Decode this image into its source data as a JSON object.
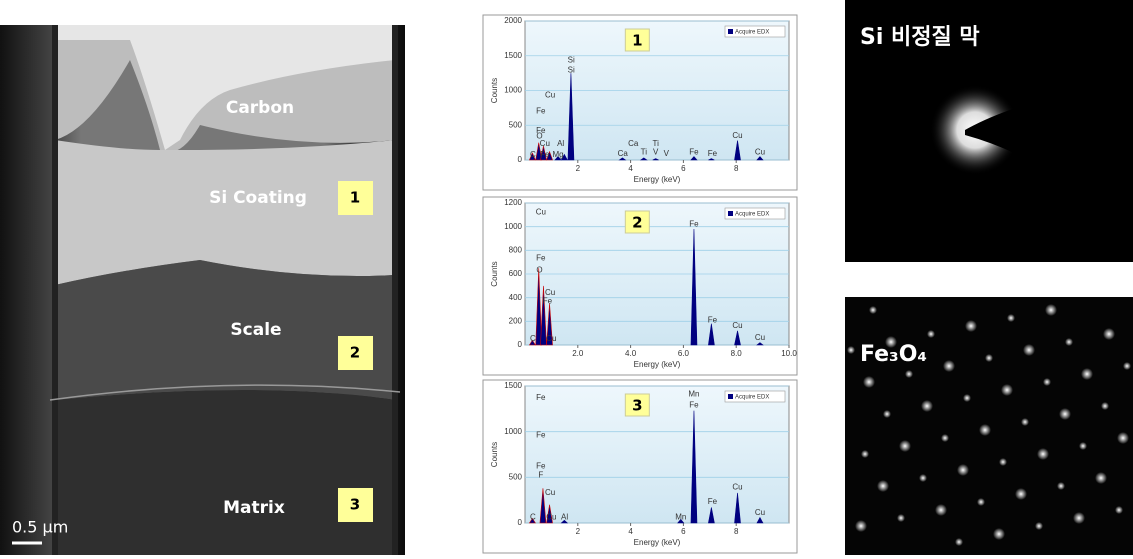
{
  "chart_data": [
    {
      "type": "spectrum",
      "label": "1",
      "xlabel": "Energy (keV)",
      "ylabel": "Counts",
      "xlim": [
        0,
        10
      ],
      "ylim": [
        0,
        2000
      ],
      "xticks": [
        2,
        4,
        6,
        8
      ],
      "yticks": [
        0,
        500,
        1000,
        1500,
        2000
      ],
      "grid": true,
      "series": [
        {
          "name": "Acquire EDX",
          "color": "#000080",
          "x": [
            0.28,
            0.52,
            0.7,
            0.93,
            1.25,
            1.49,
            1.74,
            3.69,
            4.5,
            4.95,
            6.4,
            7.06,
            8.05,
            8.9
          ],
          "values": [
            100,
            250,
            200,
            120,
            50,
            80,
            1250,
            30,
            30,
            20,
            50,
            20,
            280,
            50
          ]
        }
      ],
      "annotations": [
        {
          "text": "C",
          "x": 0.3,
          "y": 70
        },
        {
          "text": "Fe",
          "x": 0.75,
          "y": 70
        },
        {
          "text": "Mg",
          "x": 1.25,
          "y": 70
        },
        {
          "text": "Cu",
          "x": 0.75,
          "y": 230
        },
        {
          "text": "Al",
          "x": 1.35,
          "y": 230
        },
        {
          "text": "O",
          "x": 0.55,
          "y": 340
        },
        {
          "text": "Fe",
          "x": 0.6,
          "y": 420
        },
        {
          "text": "Fe",
          "x": 0.6,
          "y": 700
        },
        {
          "text": "Cu",
          "x": 0.95,
          "y": 930
        },
        {
          "text": "Si",
          "x": 1.75,
          "y": 1290
        },
        {
          "text": "Si",
          "x": 1.75,
          "y": 1430
        },
        {
          "text": "Ca",
          "x": 3.7,
          "y": 90
        },
        {
          "text": "Ca",
          "x": 4.1,
          "y": 230
        },
        {
          "text": "Ti",
          "x": 4.5,
          "y": 110
        },
        {
          "text": "Ti",
          "x": 4.95,
          "y": 230
        },
        {
          "text": "V",
          "x": 4.95,
          "y": 110
        },
        {
          "text": "V",
          "x": 5.35,
          "y": 90
        },
        {
          "text": "Fe",
          "x": 6.4,
          "y": 110
        },
        {
          "text": "Fe",
          "x": 7.1,
          "y": 90
        },
        {
          "text": "Cu",
          "x": 8.05,
          "y": 350
        },
        {
          "text": "Cu",
          "x": 8.9,
          "y": 110
        }
      ]
    },
    {
      "type": "spectrum",
      "label": "2",
      "xlabel": "Energy (keV)",
      "ylabel": "Counts",
      "xlim": [
        0,
        10
      ],
      "ylim": [
        0,
        1200
      ],
      "xticks": [
        {
          "value": 2,
          "label": "2.0"
        },
        {
          "value": 4,
          "label": "4.0"
        },
        {
          "value": 6,
          "label": "6.0"
        },
        {
          "value": 8,
          "label": "8.0"
        },
        {
          "value": 10,
          "label": "10.0"
        }
      ],
      "yticks": [
        0,
        200,
        400,
        600,
        800,
        1000,
        1200
      ],
      "grid": true,
      "series": [
        {
          "name": "Acquire EDX",
          "color": "#000080",
          "x": [
            0.28,
            0.52,
            0.7,
            0.93,
            6.4,
            7.06,
            8.05,
            8.9
          ],
          "values": [
            40,
            650,
            500,
            350,
            980,
            180,
            120,
            20
          ]
        }
      ],
      "annotations": [
        {
          "text": "Cu",
          "x": 0.6,
          "y": 1120
        },
        {
          "text": "Fe",
          "x": 0.6,
          "y": 730
        },
        {
          "text": "O",
          "x": 0.55,
          "y": 630
        },
        {
          "text": "Cu",
          "x": 0.95,
          "y": 440
        },
        {
          "text": "Fe",
          "x": 0.85,
          "y": 370
        },
        {
          "text": "C",
          "x": 0.3,
          "y": 50
        },
        {
          "text": "Cu",
          "x": 1.0,
          "y": 50
        },
        {
          "text": "Fe",
          "x": 6.4,
          "y": 1020
        },
        {
          "text": "Fe",
          "x": 7.1,
          "y": 210
        },
        {
          "text": "Cu",
          "x": 8.05,
          "y": 160
        },
        {
          "text": "Cu",
          "x": 8.9,
          "y": 60
        }
      ]
    },
    {
      "type": "spectrum",
      "label": "3",
      "xlabel": "Energy (keV)",
      "ylabel": "Counts",
      "xlim": [
        0,
        10
      ],
      "ylim": [
        0,
        1500
      ],
      "xticks": [
        2,
        4,
        6,
        8
      ],
      "yticks": [
        0,
        500,
        1000,
        1500
      ],
      "grid": true,
      "series": [
        {
          "name": "Acquire EDX",
          "color": "#000080",
          "x": [
            0.28,
            0.68,
            0.93,
            1.49,
            5.9,
            6.4,
            7.06,
            8.05,
            8.9
          ],
          "values": [
            50,
            380,
            200,
            30,
            40,
            1230,
            170,
            330,
            60
          ]
        }
      ],
      "annotations": [
        {
          "text": "Fe",
          "x": 0.6,
          "y": 1370
        },
        {
          "text": "Fe",
          "x": 0.6,
          "y": 960
        },
        {
          "text": "Fe",
          "x": 0.6,
          "y": 620
        },
        {
          "text": "F",
          "x": 0.6,
          "y": 520
        },
        {
          "text": "Cu",
          "x": 0.95,
          "y": 330
        },
        {
          "text": "C",
          "x": 0.3,
          "y": 60
        },
        {
          "text": "Cu",
          "x": 1.0,
          "y": 60
        },
        {
          "text": "Al",
          "x": 1.5,
          "y": 60
        },
        {
          "text": "Mn",
          "x": 5.9,
          "y": 60
        },
        {
          "text": "Fe",
          "x": 6.4,
          "y": 1290
        },
        {
          "text": "Mn",
          "x": 6.4,
          "y": 1410
        },
        {
          "text": "Fe",
          "x": 7.1,
          "y": 230
        },
        {
          "text": "Cu",
          "x": 8.05,
          "y": 390
        },
        {
          "text": "Cu",
          "x": 8.9,
          "y": 110
        }
      ]
    }
  ],
  "tem": {
    "layers": [
      "Carbon",
      "Si Coating",
      "Scale",
      "Matrix"
    ],
    "numbers": [
      "1",
      "2",
      "3"
    ],
    "scale": "0.5 μm"
  },
  "diffraction": [
    "Si 비정질 막",
    "Fe₃O₄"
  ]
}
